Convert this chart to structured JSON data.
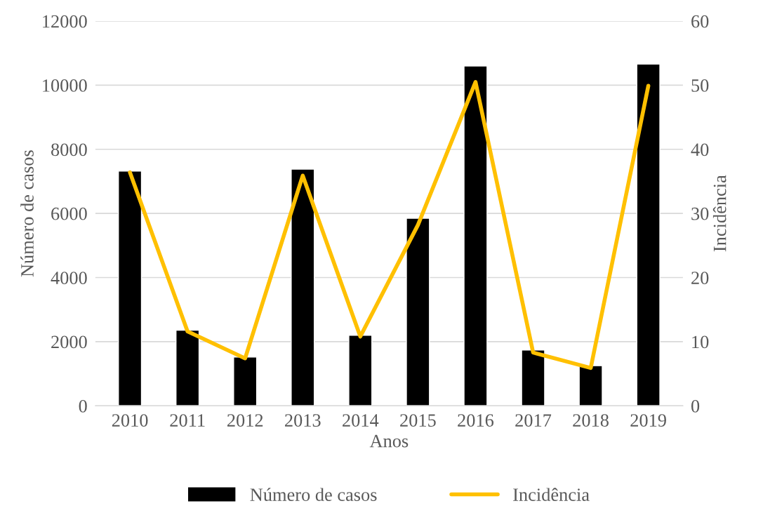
{
  "chart_data": {
    "type": "bar",
    "xlabel": "Anos",
    "ylabel": "Número de casos",
    "y2label": "Incidência",
    "categories": [
      "2010",
      "2011",
      "2012",
      "2013",
      "2014",
      "2015",
      "2016",
      "2017",
      "2018",
      "2019"
    ],
    "series": [
      {
        "name": "Número de casos",
        "color": "#000000",
        "values": [
          7320,
          2360,
          1520,
          7380,
          2200,
          5850,
          10600,
          1740,
          1250,
          10660
        ]
      },
      {
        "name": "Incidência",
        "type": "line",
        "axis": "y2",
        "color": "#ffc000",
        "values": [
          36.4,
          11.6,
          7.4,
          35.9,
          10.8,
          28.2,
          50.5,
          8.3,
          5.9,
          49.9
        ]
      }
    ],
    "ylim": [
      0,
      12000
    ],
    "yticks": [
      0,
      2000,
      4000,
      6000,
      8000,
      10000,
      12000
    ],
    "y2lim": [
      0,
      60
    ],
    "y2ticks": [
      0,
      10,
      20,
      30,
      40,
      50,
      60
    ],
    "grid": "y",
    "legend": "bottom",
    "marker": "none",
    "line_style": "solid"
  }
}
